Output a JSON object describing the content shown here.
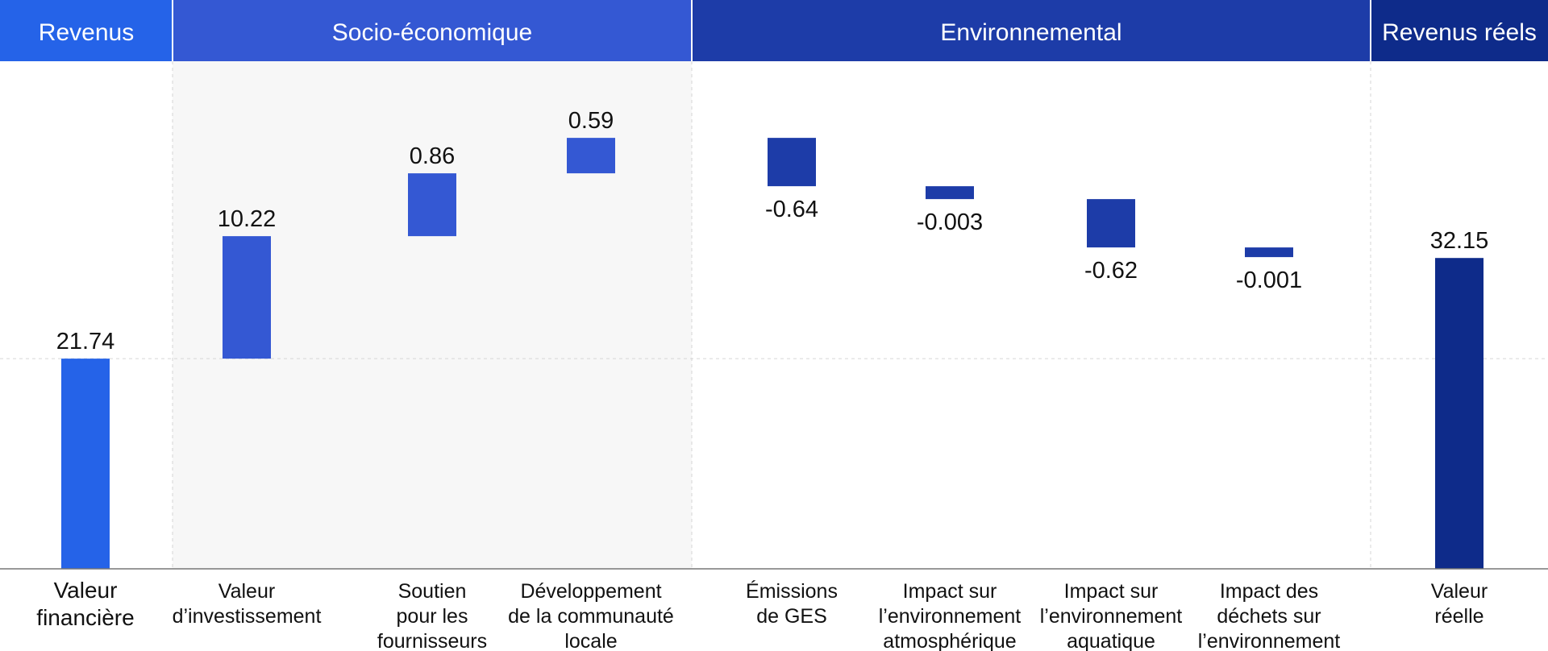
{
  "chart_data": {
    "type": "bar",
    "subtype": "waterfall",
    "title": "",
    "xlabel": "",
    "ylabel": "",
    "groups": [
      {
        "label": "Revenus",
        "color": "#2563E8",
        "categories": [
          0
        ]
      },
      {
        "label": "Socio-économique",
        "color": "#3458D3",
        "categories": [
          1,
          2,
          3
        ]
      },
      {
        "label": "Environnemental",
        "color": "#1D3CA8",
        "categories": [
          4,
          5,
          6,
          7
        ]
      },
      {
        "label": "Revenus réels",
        "color": "#0E2B8A",
        "categories": [
          8
        ]
      }
    ],
    "categories": [
      [
        "Valeur",
        "financière"
      ],
      [
        "Valeur",
        "d’investissement"
      ],
      [
        "Soutien",
        "pour les",
        "fournisseurs"
      ],
      [
        "Développement",
        "de la communauté",
        "locale"
      ],
      [
        "Émissions",
        "de GES"
      ],
      [
        "Impact sur",
        "l’environnement",
        "atmosphérique"
      ],
      [
        "Impact sur",
        "l’environnement",
        "aquatique"
      ],
      [
        "Impact des",
        "déchets sur",
        "l’environnement"
      ],
      [
        "Valeur",
        "réelle"
      ]
    ],
    "value_labels": [
      "21.74",
      "10.22",
      "0.86",
      "0.59",
      "-0.64",
      "-0.003",
      "-0.62",
      "-0.001",
      "32.15"
    ],
    "values": [
      21.74,
      10.22,
      0.86,
      0.59,
      -0.64,
      -0.003,
      -0.62,
      -0.001,
      32.15
    ],
    "bar_kind": [
      "total",
      "delta",
      "delta",
      "delta",
      "delta",
      "delta",
      "delta",
      "delta",
      "total"
    ],
    "colors": {
      "revenus": "#2563E8",
      "socio": "#3458D3",
      "environnemental": "#1D3CA8",
      "reels": "#0E2B8A",
      "socio_panel": "#F7F7F7",
      "axis": "#777777",
      "grid": "#D6D6D6"
    },
    "grid": "dashed",
    "legend": "none"
  }
}
